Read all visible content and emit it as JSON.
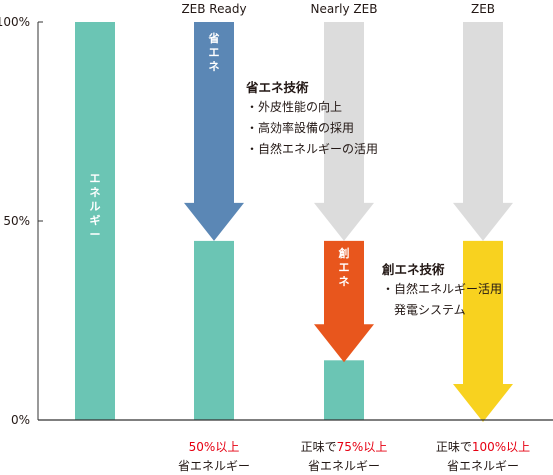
{
  "chart_data": {
    "type": "bar",
    "categories": [
      "",
      "ZEB Ready",
      "Nearly ZEB",
      "ZEB"
    ],
    "y_axis": {
      "ticks": [
        "100%",
        "50%",
        "0%"
      ],
      "range_percent": [
        0,
        100
      ]
    },
    "energy_percent": [
      100,
      45,
      15,
      -2
    ],
    "arrows": [
      {
        "kind": "saving",
        "label": "省エネ",
        "from_percent": 100,
        "to_percent": 45,
        "color": "#5B87B5",
        "category_index": 1
      },
      {
        "kind": "saving",
        "label": "",
        "from_percent": 100,
        "to_percent": 45,
        "color": "#DCDCDC",
        "category_index": 2
      },
      {
        "kind": "creation",
        "label": "創エネ",
        "from_percent": 45,
        "to_percent": 15,
        "color": "#E8561D",
        "category_index": 2
      },
      {
        "kind": "saving",
        "label": "",
        "from_percent": 100,
        "to_percent": 45,
        "color": "#DCDCDC",
        "category_index": 3
      },
      {
        "kind": "creation",
        "label": "",
        "from_percent": 45,
        "to_percent": 0,
        "color": "#F8D21F",
        "category_index": 3
      }
    ],
    "baseline_bar_label": "エネルギー",
    "colors": {
      "bar": "#6BC5B4",
      "grid": "#333333",
      "red_bar": "#E60012",
      "highlight_text": "#E60012"
    }
  },
  "annotations": {
    "saving": {
      "title": "省エネ技術",
      "items": [
        "外皮性能の向上",
        "高効率設備の採用",
        "自然エネルギーの活用"
      ]
    },
    "creation": {
      "title": "創エネ技術",
      "items": [
        "自然エネルギー活用",
        "発電システム"
      ]
    }
  },
  "bottom_labels": [
    {
      "prefix": "",
      "highlight": "",
      "suffix": "",
      "line2": ""
    },
    {
      "prefix": "",
      "highlight": "50%以上",
      "suffix": "",
      "line2": "省エネルギー"
    },
    {
      "prefix": "正味で",
      "highlight": "75%以上",
      "suffix": "",
      "line2": "省エネルギー"
    },
    {
      "prefix": "正味で",
      "highlight": "100%以上",
      "suffix": "",
      "line2": "省エネルギー"
    }
  ]
}
